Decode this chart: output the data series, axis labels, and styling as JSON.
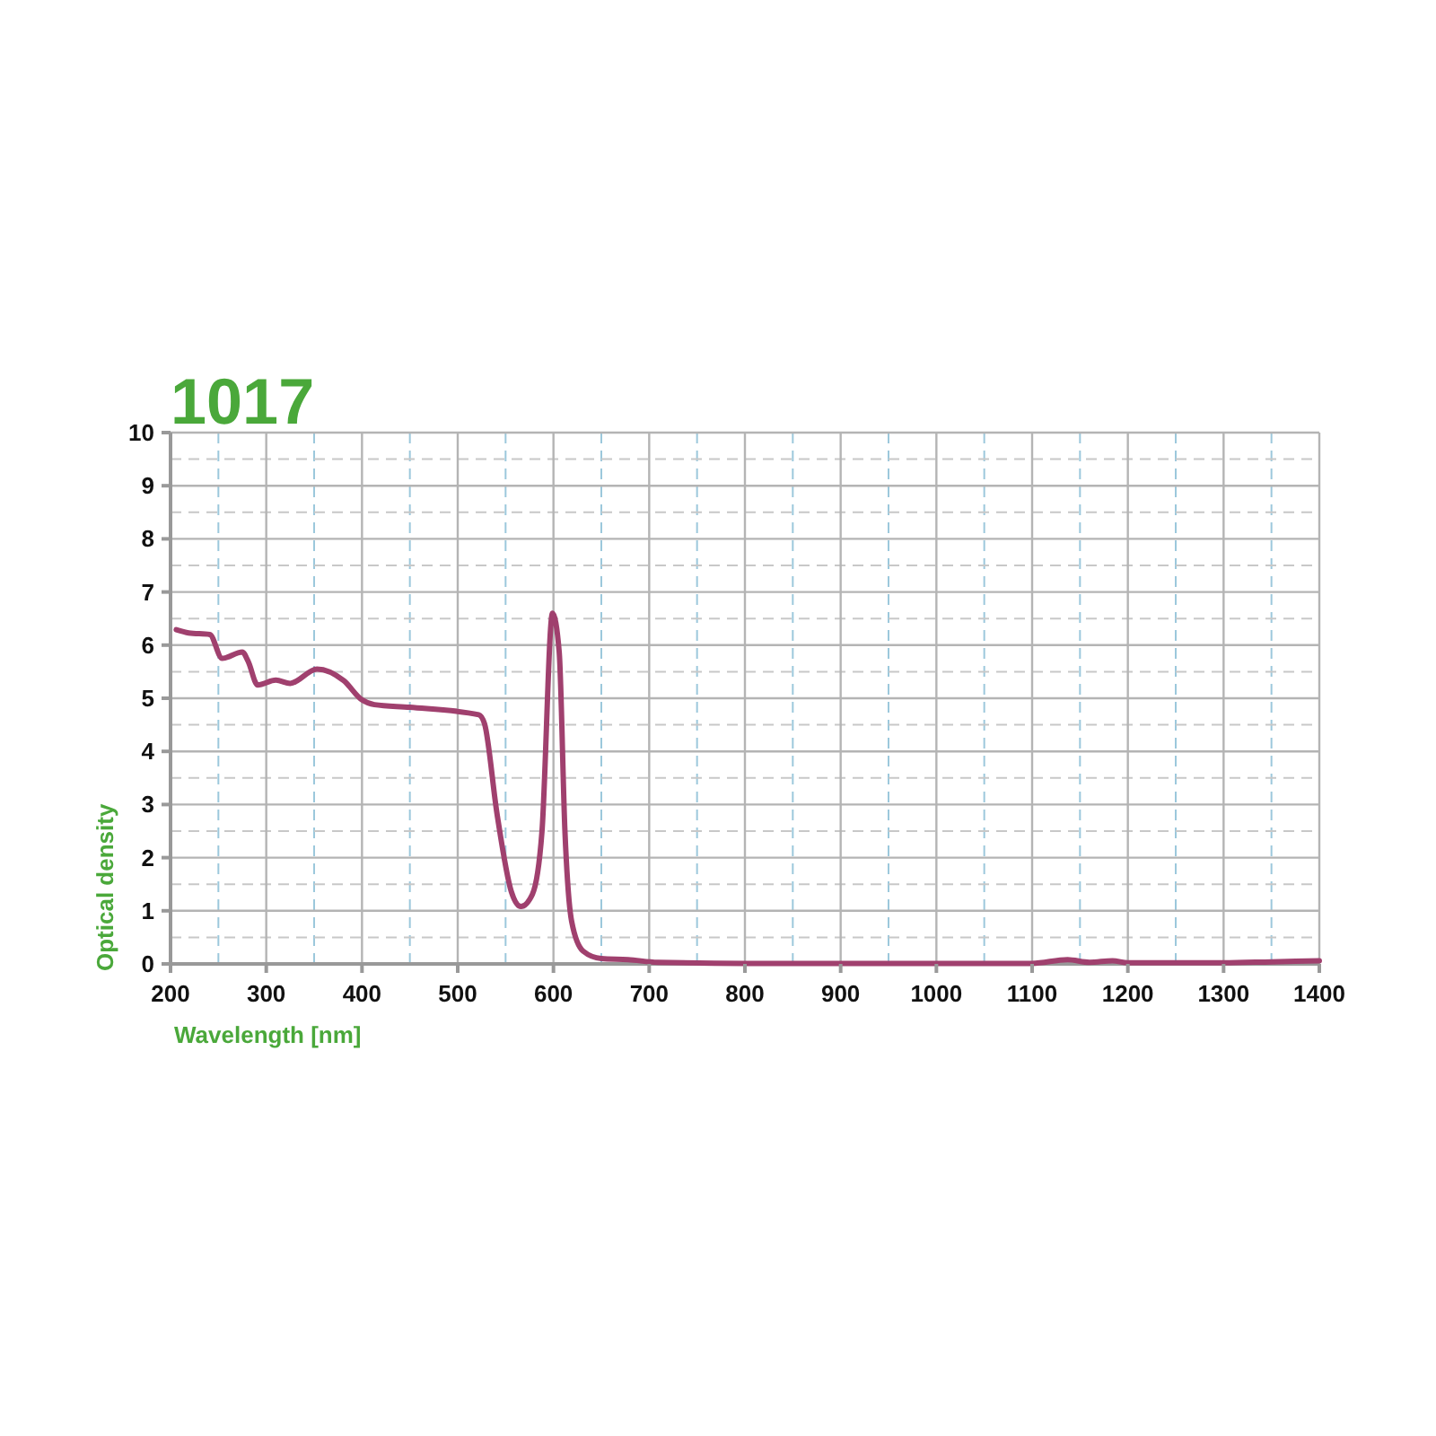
{
  "chart_data": {
    "type": "line",
    "title": "1017",
    "xlabel": "Wavelength [nm]",
    "ylabel": "Optical density",
    "x": [
      206,
      219,
      241,
      254,
      275,
      281,
      291,
      310,
      325,
      353,
      381,
      400,
      413,
      450,
      522,
      528,
      541,
      556,
      566,
      578,
      588,
      599,
      606,
      612,
      619,
      631,
      650,
      678,
      709,
      800,
      900,
      1000,
      1100,
      1137,
      1160,
      1184,
      1200,
      1300,
      1350,
      1400
    ],
    "series": [
      {
        "color": "#a0406e",
        "values": [
          6.29,
          6.23,
          6.2,
          5.75,
          5.87,
          5.7,
          5.25,
          5.34,
          5.28,
          5.55,
          5.33,
          4.97,
          4.88,
          4.83,
          4.69,
          4.52,
          2.83,
          1.36,
          1.08,
          1.31,
          2.49,
          6.6,
          5.87,
          2.49,
          0.8,
          0.24,
          0.1,
          0.08,
          0.03,
          0.01,
          0.01,
          0.01,
          0.01,
          0.08,
          0.03,
          0.06,
          0.02,
          0.02,
          0.04,
          0.06
        ]
      }
    ],
    "xlim": [
      200,
      1400
    ],
    "ylim": [
      0,
      10
    ],
    "xticks": [
      200,
      {
        "value": 250,
        "label": null
      },
      300,
      {
        "value": 350,
        "label": null
      },
      400,
      {
        "value": 450,
        "label": null
      },
      500,
      {
        "value": 550,
        "label": null
      },
      600,
      {
        "value": 650,
        "label": null
      },
      700,
      {
        "value": 750,
        "label": null
      },
      800,
      {
        "value": 850,
        "label": null
      },
      900,
      {
        "value": 950,
        "label": null
      },
      1000,
      {
        "value": 1050,
        "label": null
      },
      1100,
      {
        "value": 1150,
        "label": null
      },
      1200,
      {
        "value": 1250,
        "label": null
      },
      1300,
      {
        "value": 1350,
        "label": null
      },
      1400
    ],
    "yticks": [
      0,
      {
        "value": 0.5,
        "label": null
      },
      1,
      {
        "value": 1.5,
        "label": null
      },
      2,
      {
        "value": 2.5,
        "label": null
      },
      3,
      {
        "value": 3.5,
        "label": null
      },
      4,
      {
        "value": 4.5,
        "label": null
      },
      5,
      {
        "value": 5.5,
        "label": null
      },
      6,
      {
        "value": 6.5,
        "label": null
      },
      7,
      {
        "value": 7.5,
        "label": null
      },
      8,
      {
        "value": 8.5,
        "label": null
      },
      9,
      {
        "value": 9.5,
        "label": null
      },
      10
    ],
    "grid": true,
    "marker": "none",
    "line_style": "solid"
  }
}
